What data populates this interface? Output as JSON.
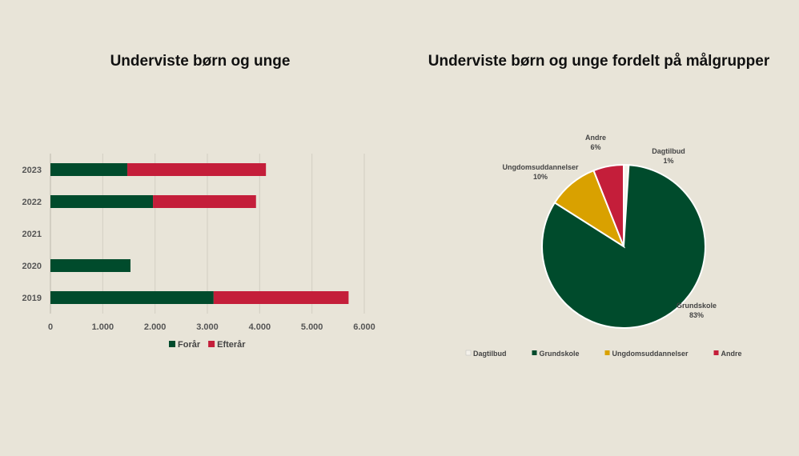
{
  "chart_data": [
    {
      "type": "bar",
      "orientation": "horizontal",
      "stacked": true,
      "title": "Underviste børn og unge",
      "categories": [
        "2023",
        "2022",
        "2021",
        "2020",
        "2019"
      ],
      "series": [
        {
          "name": "Forår",
          "values": [
            1470,
            1960,
            0,
            1530,
            3120
          ],
          "color": "#004b2c"
        },
        {
          "name": "Efterår",
          "values": [
            2650,
            1970,
            0,
            0,
            2580
          ],
          "color": "#c41e3a"
        }
      ],
      "xlim": [
        0,
        6000
      ],
      "xticks": [
        "0",
        "1.000",
        "2.000",
        "3.000",
        "4.000",
        "5.000",
        "6.000"
      ],
      "grid": true,
      "legend": "bottom"
    },
    {
      "type": "pie",
      "title": "Underviste børn og unge fordelt på målgrupper",
      "slices": [
        {
          "name": "Dagtilbud",
          "value": 1,
          "label": "1%",
          "color": "#f4f1ea"
        },
        {
          "name": "Grundskole",
          "value": 83,
          "label": "83%",
          "color": "#004b2c"
        },
        {
          "name": "Ungdomsuddannelser",
          "value": 10,
          "label": "10%",
          "color": "#d9a100"
        },
        {
          "name": "Andre",
          "value": 6,
          "label": "6%",
          "color": "#c41e3a"
        }
      ],
      "legend": "bottom"
    }
  ]
}
